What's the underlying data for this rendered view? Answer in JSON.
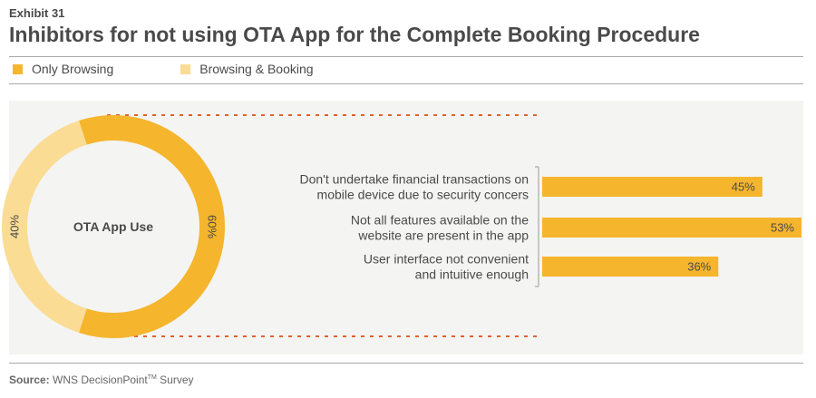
{
  "header": {
    "exhibit": "Exhibit 31",
    "title": "Inhibitors for not using OTA App for the Complete Booking Procedure"
  },
  "legend": [
    {
      "label": "Only Browsing",
      "color": "#f5b52d"
    },
    {
      "label": "Browsing & Booking",
      "color": "#fbdc95"
    }
  ],
  "colors": {
    "primary": "#f5b52d",
    "secondary": "#fbdc95",
    "panel": "#f4f4f3",
    "dotted_line": "#e0622a"
  },
  "chart_data": [
    {
      "type": "pie",
      "style": "donut",
      "center_label": "OTA App Use",
      "slices": [
        {
          "name": "Only Browsing",
          "value": 60,
          "label": "60%"
        },
        {
          "name": "Browsing & Booking",
          "value": 40,
          "label": "40%"
        }
      ]
    },
    {
      "type": "bar",
      "orientation": "horizontal",
      "categories": [
        [
          "Don't undertake financial transactions on",
          "mobile device due to security concers"
        ],
        [
          "Not all features available on the",
          "website are present in the app"
        ],
        [
          "User interface not convenient",
          "and intuitive enough"
        ]
      ],
      "values": [
        45,
        53,
        36
      ],
      "value_labels": [
        "45%",
        "53%",
        "36%"
      ],
      "xlim": [
        0,
        53
      ]
    }
  ],
  "source": {
    "prefix": "Source:",
    "text": "WNS DecisionPoint",
    "tm": "TM",
    "suffix": " Survey"
  }
}
